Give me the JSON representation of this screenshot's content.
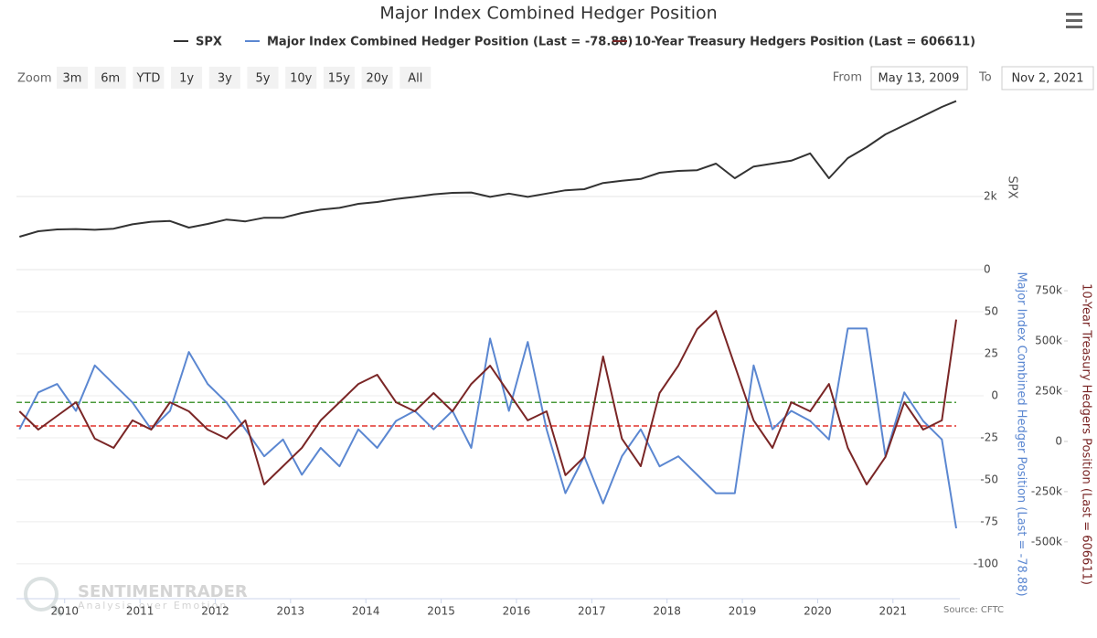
{
  "chart_data": {
    "type": "line",
    "title": "Major Index Combined Hedger Position",
    "range_selector": {
      "zoom_label": "Zoom",
      "buttons": [
        "3m",
        "6m",
        "YTD",
        "1y",
        "3y",
        "5y",
        "10y",
        "15y",
        "20y",
        "All"
      ],
      "from_label": "From",
      "from": "May 13, 2009",
      "to_label": "To",
      "to": "Nov 2, 2021"
    },
    "x": [
      2009.4,
      2009.65,
      2009.9,
      2010.15,
      2010.4,
      2010.65,
      2010.9,
      2011.15,
      2011.4,
      2011.65,
      2011.9,
      2012.15,
      2012.4,
      2012.65,
      2012.9,
      2013.15,
      2013.4,
      2013.65,
      2013.9,
      2014.15,
      2014.4,
      2014.65,
      2014.9,
      2015.15,
      2015.4,
      2015.65,
      2015.9,
      2016.15,
      2016.4,
      2016.65,
      2016.9,
      2017.15,
      2017.4,
      2017.65,
      2017.9,
      2018.15,
      2018.4,
      2018.65,
      2018.9,
      2019.15,
      2019.4,
      2019.65,
      2019.9,
      2020.15,
      2020.4,
      2020.65,
      2020.9,
      2021.15,
      2021.4,
      2021.65,
      2021.84
    ],
    "xlim": [
      2009.36,
      2021.84
    ],
    "xticks": [
      2010,
      2011,
      2012,
      2013,
      2014,
      2015,
      2016,
      2017,
      2018,
      2019,
      2020,
      2021
    ],
    "series": [
      {
        "name": "SPX",
        "color": "#333333",
        "axis": "y3",
        "values": [
          900,
          1050,
          1100,
          1110,
          1090,
          1120,
          1240,
          1310,
          1330,
          1150,
          1250,
          1370,
          1320,
          1420,
          1420,
          1550,
          1640,
          1690,
          1800,
          1850,
          1930,
          1990,
          2060,
          2100,
          2110,
          1990,
          2080,
          1990,
          2080,
          2170,
          2200,
          2370,
          2430,
          2480,
          2650,
          2700,
          2720,
          2900,
          2500,
          2820,
          2900,
          2980,
          3180,
          2500,
          3050,
          3350,
          3700,
          3950,
          4200,
          4450,
          4610
        ]
      },
      {
        "name": "Major Index Combined Hedger Position (Last = -78.88)",
        "color": "#5b87d1",
        "axis": "y",
        "values": [
          -20,
          2,
          7,
          -9,
          18,
          7,
          -4,
          -20,
          -9,
          26,
          7,
          -4,
          -20,
          -36,
          -26,
          -47,
          -31,
          -42,
          -20,
          -31,
          -15,
          -9,
          -20,
          -9,
          -31,
          34,
          -9,
          32,
          -20,
          -58,
          -36,
          -64,
          -36,
          -20,
          -42,
          -36,
          -47,
          -58,
          -58,
          18,
          -20,
          -9,
          -15,
          -26,
          40,
          40,
          -36,
          2,
          -15,
          -26,
          -78.88
        ]
      },
      {
        "name": "10-Year Treasury Hedgers Position (Last = 606611)",
        "color": "#7a2626",
        "axis": "y2",
        "values": [
          150000,
          59000,
          127000,
          195000,
          14000,
          -32000,
          105000,
          59000,
          195000,
          150000,
          59000,
          14000,
          105000,
          -214000,
          -123000,
          -32000,
          105000,
          195000,
          286000,
          332000,
          195000,
          150000,
          241000,
          150000,
          286000,
          377000,
          241000,
          105000,
          150000,
          -168000,
          -77000,
          423000,
          14000,
          -123000,
          241000,
          377000,
          559000,
          650000,
          377000,
          105000,
          -32000,
          195000,
          150000,
          286000,
          -32000,
          -214000,
          -77000,
          195000,
          59000,
          105000,
          606611
        ]
      }
    ],
    "y3lim": [
      0,
      4500
    ],
    "y3ticks": [
      0,
      {
        "value": 2000,
        "label": "2k"
      }
    ],
    "ylim": [
      -118,
      75
    ],
    "yticks": [
      -100,
      -75,
      -50,
      -25,
      0,
      25,
      50
    ],
    "y2lim": [
      -760000,
      855000
    ],
    "y2ticks": [
      {
        "value": -500000,
        "label": "-500k"
      },
      {
        "value": -250000,
        "label": "-250k"
      },
      0,
      {
        "value": 250000,
        "label": "250k"
      },
      {
        "value": 500000,
        "label": "500k"
      },
      {
        "value": 750000,
        "label": "750k"
      }
    ],
    "reference_lines": [
      {
        "value": -4,
        "color": "#4a9a3a"
      },
      {
        "value": -18,
        "color": "#e0302a"
      }
    ],
    "grid": true,
    "source": "Source: CFTC",
    "watermark": {
      "name": "SENTIMENTRADER",
      "tagline": "Analysis over Emotion"
    }
  }
}
